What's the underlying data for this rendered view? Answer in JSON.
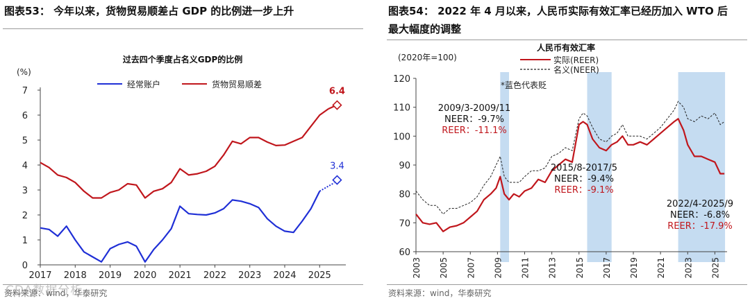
{
  "left": {
    "figure_title": "图表53：  今年以来，货物贸易顺差占 GDP 的比例进一步上升",
    "source": "资料来源：wind，华泰研究",
    "watermark": "CDA数据分析"
  },
  "right": {
    "figure_title_line1": "图表54：  2022 年 4 月以来，人民币实际有效汇率已经历加入 WTO 后",
    "figure_title_line2": "最大幅度的调整",
    "source": "资料来源：wind，华泰研究"
  },
  "colors": {
    "blue": "#1f2fd6",
    "red": "#c0161c",
    "navy": "#1f3d8c",
    "shade": "#c5dcf1",
    "axis": "#444444"
  },
  "chart_data": [
    {
      "type": "line",
      "title": "过去四个季度占名义GDP的比例",
      "ylabel": "(%)",
      "ylim": [
        0,
        7
      ],
      "yticks": [
        0,
        1,
        2,
        3,
        4,
        5,
        6,
        7
      ],
      "xlim": [
        2017.0,
        2025.75
      ],
      "xticks": [
        "2017",
        "2018",
        "2019",
        "2020",
        "2021",
        "2022",
        "2023",
        "2024",
        "2025"
      ],
      "series": [
        {
          "name": "经常账户",
          "color": "#1f2fd6",
          "x": [
            2017.0,
            2017.25,
            2017.5,
            2017.75,
            2018.0,
            2018.25,
            2018.5,
            2018.75,
            2019.0,
            2019.25,
            2019.5,
            2019.75,
            2020.0,
            2020.25,
            2020.5,
            2020.75,
            2021.0,
            2021.25,
            2021.5,
            2021.75,
            2022.0,
            2022.25,
            2022.5,
            2022.75,
            2023.0,
            2023.25,
            2023.5,
            2023.75,
            2024.0,
            2024.25,
            2024.5,
            2024.75,
            2025.0,
            2025.25
          ],
          "values": [
            1.48,
            1.42,
            1.15,
            1.55,
            1.0,
            0.52,
            0.32,
            0.12,
            0.65,
            0.82,
            0.92,
            0.75,
            0.12,
            0.62,
            1.0,
            1.45,
            2.35,
            2.05,
            2.02,
            2.0,
            2.08,
            2.25,
            2.6,
            2.55,
            2.45,
            2.3,
            1.85,
            1.55,
            1.35,
            1.3,
            1.75,
            2.25,
            2.95,
            3.35
          ],
          "dashed_tail_from_index": 32,
          "end_marker": {
            "x": 2025.5,
            "y": 3.4
          },
          "end_label": "3.4"
        },
        {
          "name": "货物贸易顺差",
          "color": "#c0161c",
          "x": [
            2017.0,
            2017.25,
            2017.5,
            2017.75,
            2018.0,
            2018.25,
            2018.5,
            2018.75,
            2019.0,
            2019.25,
            2019.5,
            2019.75,
            2020.0,
            2020.25,
            2020.5,
            2020.75,
            2021.0,
            2021.25,
            2021.5,
            2021.75,
            2022.0,
            2022.25,
            2022.5,
            2022.75,
            2023.0,
            2023.25,
            2023.5,
            2023.75,
            2024.0,
            2024.25,
            2024.5,
            2024.75,
            2025.0,
            2025.25
          ],
          "values": [
            4.1,
            3.9,
            3.6,
            3.5,
            3.3,
            2.95,
            2.68,
            2.68,
            2.9,
            3.0,
            3.25,
            3.2,
            2.68,
            2.95,
            3.05,
            3.3,
            3.85,
            3.6,
            3.65,
            3.75,
            3.95,
            4.4,
            4.95,
            4.85,
            5.1,
            5.1,
            4.92,
            4.78,
            4.8,
            4.95,
            5.1,
            5.55,
            6.0,
            6.25
          ],
          "end_marker": {
            "x": 2025.5,
            "y": 6.4
          },
          "end_label": "6.4"
        }
      ]
    },
    {
      "type": "line",
      "title": "人民币有效汇率",
      "ylabel": "(2020年=100)",
      "ylim": [
        60,
        120
      ],
      "yticks": [
        60,
        70,
        80,
        90,
        100,
        110,
        120
      ],
      "xlim": [
        2003.0,
        2025.9
      ],
      "xticks": [
        "2003",
        "2005",
        "2007",
        "2009",
        "2011",
        "2013",
        "2015",
        "2017",
        "2019",
        "2021",
        "2023",
        "2025"
      ],
      "note": "*蓝色代表贬",
      "shaded_periods": [
        {
          "from": 2009.2,
          "to": 2009.85
        },
        {
          "from": 2015.6,
          "to": 2017.4
        },
        {
          "from": 2022.3,
          "to": 2025.75
        }
      ],
      "annotations": [
        {
          "period": "2009/3-2009/11",
          "neer": "NEER：-9.7%",
          "reer": "REER：-11.1%"
        },
        {
          "period": "2015/8-2017/5",
          "neer": "NEER：-9.4%",
          "reer": "REER：-9.1%"
        },
        {
          "period": "2022/4-2025/9",
          "neer": "NEER：-6.8%",
          "reer": "REER：-17.9%"
        }
      ],
      "series": [
        {
          "name": "实际(REER)",
          "color": "#c0161c",
          "x": [
            2003.0,
            2003.5,
            2004.0,
            2004.5,
            2005.0,
            2005.5,
            2006.0,
            2006.5,
            2007.0,
            2007.5,
            2008.0,
            2008.5,
            2008.9,
            2009.2,
            2009.5,
            2009.85,
            2010.2,
            2010.6,
            2011.0,
            2011.5,
            2012.0,
            2012.5,
            2013.0,
            2013.5,
            2014.0,
            2014.5,
            2015.0,
            2015.3,
            2015.6,
            2016.0,
            2016.5,
            2017.0,
            2017.4,
            2017.8,
            2018.2,
            2018.6,
            2019.0,
            2019.5,
            2020.0,
            2020.5,
            2021.0,
            2021.5,
            2022.0,
            2022.3,
            2022.7,
            2023.0,
            2023.5,
            2024.0,
            2024.5,
            2025.0,
            2025.4,
            2025.7
          ],
          "values": [
            73,
            70,
            69.5,
            70,
            67,
            68.5,
            69,
            70,
            72,
            74,
            78,
            80,
            82,
            86,
            80,
            78,
            80,
            79,
            81,
            82,
            85,
            84,
            88,
            90,
            92,
            91,
            104,
            105,
            104,
            99,
            96,
            95,
            97,
            98,
            100,
            97,
            97,
            98,
            97,
            99,
            101,
            103,
            105,
            106,
            102,
            97,
            93,
            93,
            92,
            91,
            87,
            87
          ]
        },
        {
          "name": "名义(NEER)",
          "color": "#222222",
          "x": [
            2003.0,
            2003.5,
            2004.0,
            2004.5,
            2005.0,
            2005.5,
            2006.0,
            2006.5,
            2007.0,
            2007.5,
            2008.0,
            2008.5,
            2008.9,
            2009.2,
            2009.5,
            2009.85,
            2010.2,
            2010.6,
            2011.0,
            2011.5,
            2012.0,
            2012.5,
            2013.0,
            2013.5,
            2014.0,
            2014.5,
            2015.0,
            2015.3,
            2015.6,
            2016.0,
            2016.5,
            2017.0,
            2017.4,
            2017.8,
            2018.2,
            2018.6,
            2019.0,
            2019.5,
            2020.0,
            2020.5,
            2021.0,
            2021.5,
            2022.0,
            2022.3,
            2022.7,
            2023.0,
            2023.5,
            2024.0,
            2024.5,
            2025.0,
            2025.4,
            2025.7
          ],
          "values": [
            81,
            78,
            76,
            76,
            73,
            75,
            75,
            76,
            77,
            79,
            83,
            86,
            90,
            93,
            86,
            84,
            84,
            84,
            86,
            88,
            88,
            89,
            93,
            94,
            96,
            95,
            106,
            108,
            107,
            103,
            99,
            98,
            100,
            101,
            104,
            100,
            100,
            100,
            99,
            101,
            103,
            106,
            109,
            112,
            110,
            106,
            105,
            107,
            106,
            108,
            104,
            105
          ]
        }
      ]
    }
  ]
}
